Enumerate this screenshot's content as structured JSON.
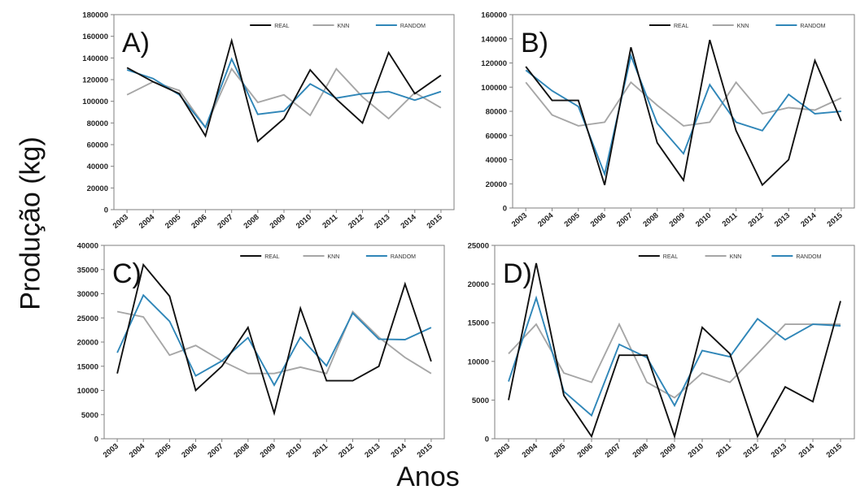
{
  "figure": {
    "ylabel": "Produção (kg)",
    "xlabel": "Anos"
  },
  "chart_data": [
    {
      "type": "line",
      "panel_label": "A)",
      "x": [
        "2003",
        "2004",
        "2005",
        "2006",
        "2007",
        "2008",
        "2009",
        "2010",
        "2011",
        "2012",
        "2013",
        "2014",
        "2015"
      ],
      "ylim": [
        0,
        180000
      ],
      "yticks": [
        0,
        20000,
        40000,
        60000,
        80000,
        100000,
        120000,
        140000,
        160000,
        180000
      ],
      "legend_position": "top-right",
      "series": [
        {
          "name": "REAL",
          "color": "#111111",
          "values": [
            131000,
            118000,
            107000,
            68000,
            156000,
            63000,
            84000,
            129000,
            102000,
            80000,
            145000,
            107000,
            124000
          ]
        },
        {
          "name": "KNN",
          "color": "#a6a6a6",
          "values": [
            106000,
            118000,
            110000,
            76000,
            130000,
            99000,
            106000,
            87000,
            130000,
            104000,
            84000,
            108000,
            94000
          ]
        },
        {
          "name": "RANDOM",
          "color": "#2f86b8",
          "values": [
            129000,
            121000,
            106000,
            76000,
            139000,
            88000,
            91000,
            116000,
            103000,
            107000,
            109000,
            101000,
            109000
          ]
        }
      ]
    },
    {
      "type": "line",
      "panel_label": "B)",
      "x": [
        "2003",
        "2004",
        "2005",
        "2006",
        "2007",
        "2008",
        "2009",
        "2010",
        "2011",
        "2012",
        "2013",
        "2014",
        "2015"
      ],
      "ylim": [
        0,
        160000
      ],
      "yticks": [
        0,
        20000,
        40000,
        60000,
        80000,
        100000,
        120000,
        140000,
        160000
      ],
      "legend_position": "top-right",
      "series": [
        {
          "name": "REAL",
          "color": "#111111",
          "values": [
            117000,
            89000,
            89000,
            19000,
            133000,
            54000,
            23000,
            139000,
            64000,
            19000,
            40000,
            122000,
            72000
          ]
        },
        {
          "name": "KNN",
          "color": "#a6a6a6",
          "values": [
            104000,
            77000,
            68000,
            71000,
            104000,
            85000,
            68000,
            71000,
            104000,
            78000,
            83000,
            81000,
            91000
          ]
        },
        {
          "name": "RANDOM",
          "color": "#2f86b8",
          "values": [
            114000,
            97000,
            84000,
            28000,
            126000,
            70000,
            45000,
            102000,
            71000,
            64000,
            94000,
            78000,
            80000
          ]
        }
      ]
    },
    {
      "type": "line",
      "panel_label": "C)",
      "x": [
        "2003",
        "2004",
        "2005",
        "2006",
        "2007",
        "2008",
        "2009",
        "2010",
        "2011",
        "2012",
        "2013",
        "2014",
        "2015"
      ],
      "ylim": [
        0,
        40000
      ],
      "yticks": [
        0,
        5000,
        10000,
        15000,
        20000,
        25000,
        30000,
        35000,
        40000
      ],
      "legend_position": "top-right",
      "series": [
        {
          "name": "REAL",
          "color": "#111111",
          "values": [
            13500,
            36000,
            29500,
            10000,
            15000,
            23000,
            5300,
            27000,
            12000,
            12000,
            15000,
            32000,
            16000
          ]
        },
        {
          "name": "KNN",
          "color": "#a6a6a6",
          "values": [
            26300,
            25200,
            17300,
            19300,
            16100,
            13500,
            13500,
            14800,
            13500,
            26300,
            21000,
            16800,
            13500
          ]
        },
        {
          "name": "RANDOM",
          "color": "#2f86b8",
          "values": [
            17800,
            29700,
            24300,
            13000,
            16100,
            20900,
            11100,
            21000,
            15100,
            26000,
            20600,
            20500,
            23000
          ]
        }
      ]
    },
    {
      "type": "line",
      "panel_label": "D)",
      "x": [
        "2003",
        "2004",
        "2005",
        "2006",
        "2007",
        "2008",
        "2009",
        "2010",
        "2011",
        "2012",
        "2013",
        "2014",
        "2015"
      ],
      "ylim": [
        0,
        25000
      ],
      "yticks": [
        0,
        5000,
        10000,
        15000,
        20000,
        25000
      ],
      "legend_position": "top-right",
      "series": [
        {
          "name": "REAL",
          "color": "#111111",
          "values": [
            5000,
            22700,
            5600,
            300,
            10800,
            10800,
            300,
            14400,
            11000,
            300,
            6700,
            4800,
            17800
          ]
        },
        {
          "name": "KNN",
          "color": "#a6a6a6",
          "values": [
            11000,
            14800,
            8500,
            7300,
            14800,
            7300,
            5300,
            8500,
            7300,
            11000,
            14800,
            14800,
            14800
          ]
        },
        {
          "name": "RANDOM",
          "color": "#2f86b8",
          "values": [
            7400,
            18200,
            6100,
            3000,
            12200,
            10500,
            4300,
            11400,
            10600,
            15500,
            12800,
            14800,
            14600
          ]
        }
      ]
    }
  ]
}
